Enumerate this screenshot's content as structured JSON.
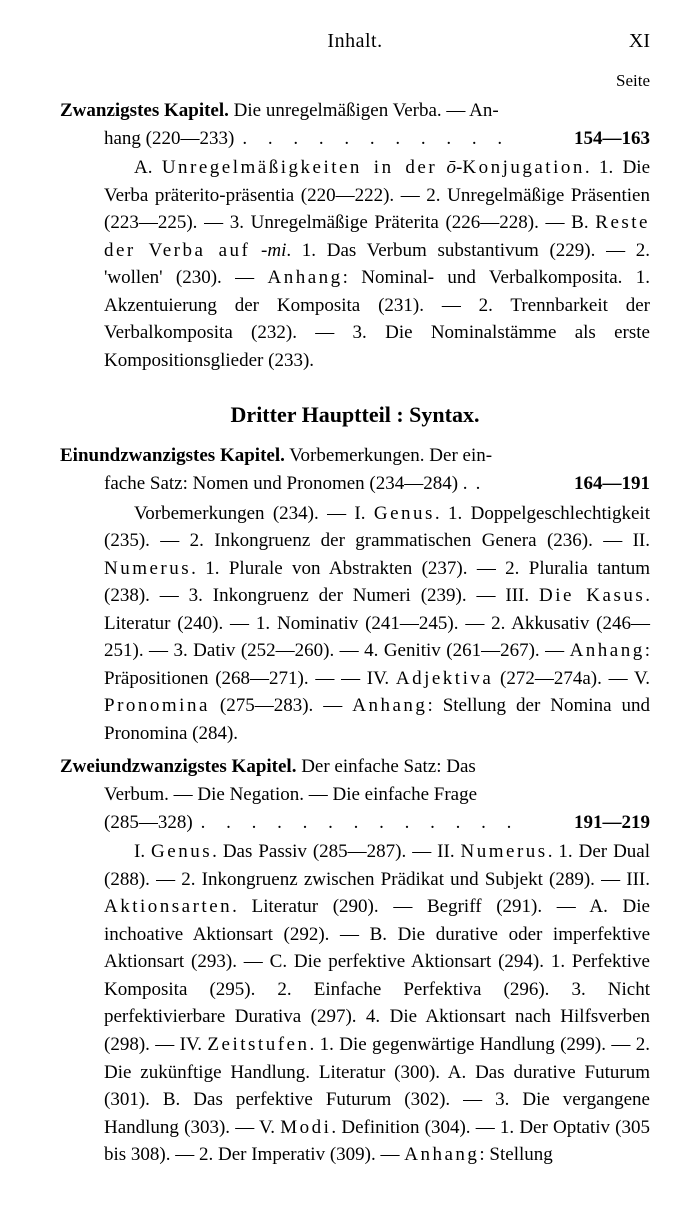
{
  "header": {
    "running": "Inhalt.",
    "page_number": "XI",
    "seite": "Seite"
  },
  "section_title": "Dritter Hauptteil : Syntax.",
  "chapters": [
    {
      "title": "Zwanzigstes Kapitel.",
      "head_line1_tail": " Die unregelmäßigen Verba. — An-",
      "head_line2_text": "hang (220—233)",
      "leader": ". . . . . . . . . . .",
      "pages": "154—163",
      "body": "A. <span class='sp1'>Unregelmäßigkeiten in der</span> <span class='italic'>ō</span>-<span class='sp1'>Konjugation</span>. 1. Die Verba präterito-präsentia (220—222). — 2. Unregelmäßige Präsentien (223—225). — 3. Unregelmäßige Präterita (226—228). — B. <span class='sp1'>Reste der Verba auf</span> -<span class='italic'>mi</span>. 1. Das Verbum substantivum (229). — 2. 'wollen' (230). — <span class='sp1'>Anhang</span>: Nominal- und Verbalkomposita. 1. Akzentuierung der Komposita (231). — 2. Trennbarkeit der Verbalkomposita (232). — 3. Die Nominalstämme als erste Kompositionsglieder (233)."
    },
    {
      "title": "Einundzwanzigstes Kapitel.",
      "head_line1_tail": " Vorbemerkungen. Der ein-",
      "head_line2_text": "fache Satz: Nomen und Pronomen (234—284) .",
      "leader": ".",
      "pages": "164—191",
      "body": "Vorbemerkungen (234). — I. <span class='sp1'>Genus</span>. 1. Doppelgeschlechtigkeit (235). — 2. Inkongruenz der grammatischen Genera (236). — II. <span class='sp1'>Numerus</span>. 1. Plurale von Abstrakten (237). — 2. Pluralia tantum (238). — 3. Inkongruenz der Numeri (239). — III. <span class='sp1'>Die Kasus</span>. Literatur (240). — 1. Nominativ (241—245). — 2. Akkusativ (246—251). — 3. Dativ (252—260). — 4. Genitiv (261—267). — <span class='sp1'>Anhang</span>: Präpositionen (268—271). — — IV. <span class='sp1'>Adjektiva</span> (272—274a). — V. <span class='sp1'>Pronomina</span> (275—283). — <span class='sp1'>Anhang</span>: Stellung der Nomina und Pronomina (284)."
    },
    {
      "title": "Zweiundzwanzigstes Kapitel.",
      "head_line1_tail": " Der einfache Satz: Das",
      "head_line2_mid": "Verbum. — Die Negation. — Die einfache Frage",
      "head_line2_text": "(285—328)",
      "leader": ". . . . . . . . . . . . .",
      "pages": "191—219",
      "body": "I. <span class='sp1'>Genus</span>. Das Passiv (285—287). — II. <span class='sp1'>Numerus</span>. 1. Der Dual (288). — 2. Inkongruenz zwischen Prädikat und Subjekt (289). — III. <span class='sp1'>Aktionsarten</span>. Literatur (290). — Begriff (291). — A. Die inchoative Aktionsart (292). — B. Die durative oder imperfektive Aktionsart (293). — C. Die perfektive Aktionsart (294). 1. Perfektive Komposita (295). 2. Einfache Perfektiva (296). 3. Nicht perfektivierbare Durativa (297). 4. Die Aktionsart nach Hilfsverben (298). — IV. <span class='sp1'>Zeitstufen</span>. 1. Die gegenwärtige Handlung (299). — 2. Die zukünftige Handlung. Literatur (300). A. Das durative Futurum (301). B. Das perfektive Futurum (302). — 3. Die vergangene Handlung (303). — V. <span class='sp1'>Modi</span>. Definition (304). — 1. Der Optativ (305 bis 308). — 2. Der Imperativ (309). — <span class='sp1'>Anhang</span>: Stellung"
    }
  ]
}
